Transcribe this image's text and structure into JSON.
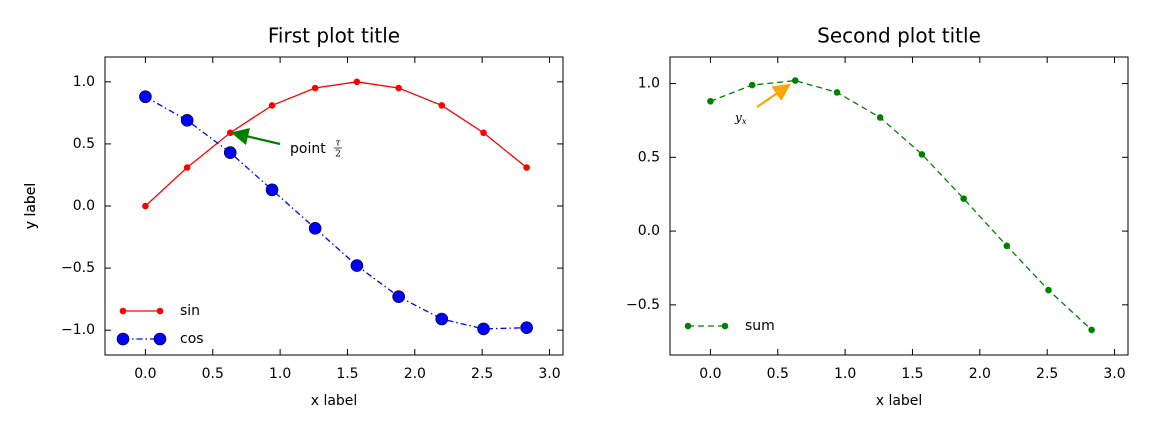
{
  "chart_data": [
    {
      "type": "line",
      "title": "First plot title",
      "x_label": "x label",
      "y_label": "y label",
      "x": [
        0,
        0.31,
        0.63,
        0.94,
        1.26,
        1.57,
        1.88,
        2.2,
        2.51,
        2.83
      ],
      "series": [
        {
          "name": "sin",
          "color": "#ff0000",
          "linestyle": "solid",
          "marker_size": "small",
          "values": [
            0,
            0.31,
            0.59,
            0.81,
            0.95,
            1.0,
            0.95,
            0.81,
            0.59,
            0.31
          ]
        },
        {
          "name": "cos",
          "color": "#0000ff",
          "linestyle": "dashdot",
          "marker_size": "large",
          "values": [
            0.88,
            0.69,
            0.43,
            0.13,
            -0.18,
            -0.48,
            -0.73,
            -0.91,
            -0.99,
            -0.98
          ]
        }
      ],
      "xlim": [
        -0.3,
        3.1
      ],
      "ylim": [
        -1.2,
        1.2
      ],
      "xticks": [
        {
          "value": 0,
          "label": "0.0"
        },
        {
          "value": 0.5,
          "label": "0.5"
        },
        {
          "value": 1,
          "label": "1.0"
        },
        {
          "value": 1.5,
          "label": "1.5"
        },
        {
          "value": 2,
          "label": "2.0"
        },
        {
          "value": 2.5,
          "label": "2.5"
        },
        {
          "value": 3,
          "label": "3.0"
        }
      ],
      "yticks": [
        {
          "value": -1,
          "label": "−1.0"
        },
        {
          "value": -0.5,
          "label": "−0.5"
        },
        {
          "value": 0,
          "label": "0.0"
        },
        {
          "value": 0.5,
          "label": "0.5"
        },
        {
          "value": 1,
          "label": "1.0"
        }
      ],
      "legend": "lower left",
      "annotation": {
        "text": "point",
        "numerator": "τ",
        "denominator": "2",
        "color": "#008000"
      }
    },
    {
      "type": "line",
      "title": "Second plot title",
      "x_label": "x label",
      "y_label": "y label",
      "x": [
        0,
        0.31,
        0.63,
        0.94,
        1.26,
        1.57,
        1.88,
        2.2,
        2.51,
        2.83
      ],
      "series": [
        {
          "name": "sum",
          "color": "#008000",
          "linestyle": "dashed",
          "marker_size": "small",
          "values": [
            0.88,
            0.99,
            1.02,
            0.94,
            0.77,
            0.52,
            0.22,
            -0.1,
            -0.4,
            -0.67
          ]
        }
      ],
      "xlim": [
        -0.3,
        3.1
      ],
      "ylim": [
        -0.84,
        1.18
      ],
      "xticks": [
        {
          "value": 0,
          "label": "0.0"
        },
        {
          "value": 0.5,
          "label": "0.5"
        },
        {
          "value": 1,
          "label": "1.0"
        },
        {
          "value": 1.5,
          "label": "1.5"
        },
        {
          "value": 2,
          "label": "2.0"
        },
        {
          "value": 2.5,
          "label": "2.5"
        },
        {
          "value": 3,
          "label": "3.0"
        }
      ],
      "yticks": [
        {
          "value": -0.5,
          "label": "−0.5"
        },
        {
          "value": 0,
          "label": "0.0"
        },
        {
          "value": 0.5,
          "label": "0.5"
        },
        {
          "value": 1,
          "label": "1.0"
        }
      ],
      "legend": "lower left",
      "annotation": {
        "base": "y",
        "sub": "x",
        "color": "#ffa500"
      }
    }
  ]
}
